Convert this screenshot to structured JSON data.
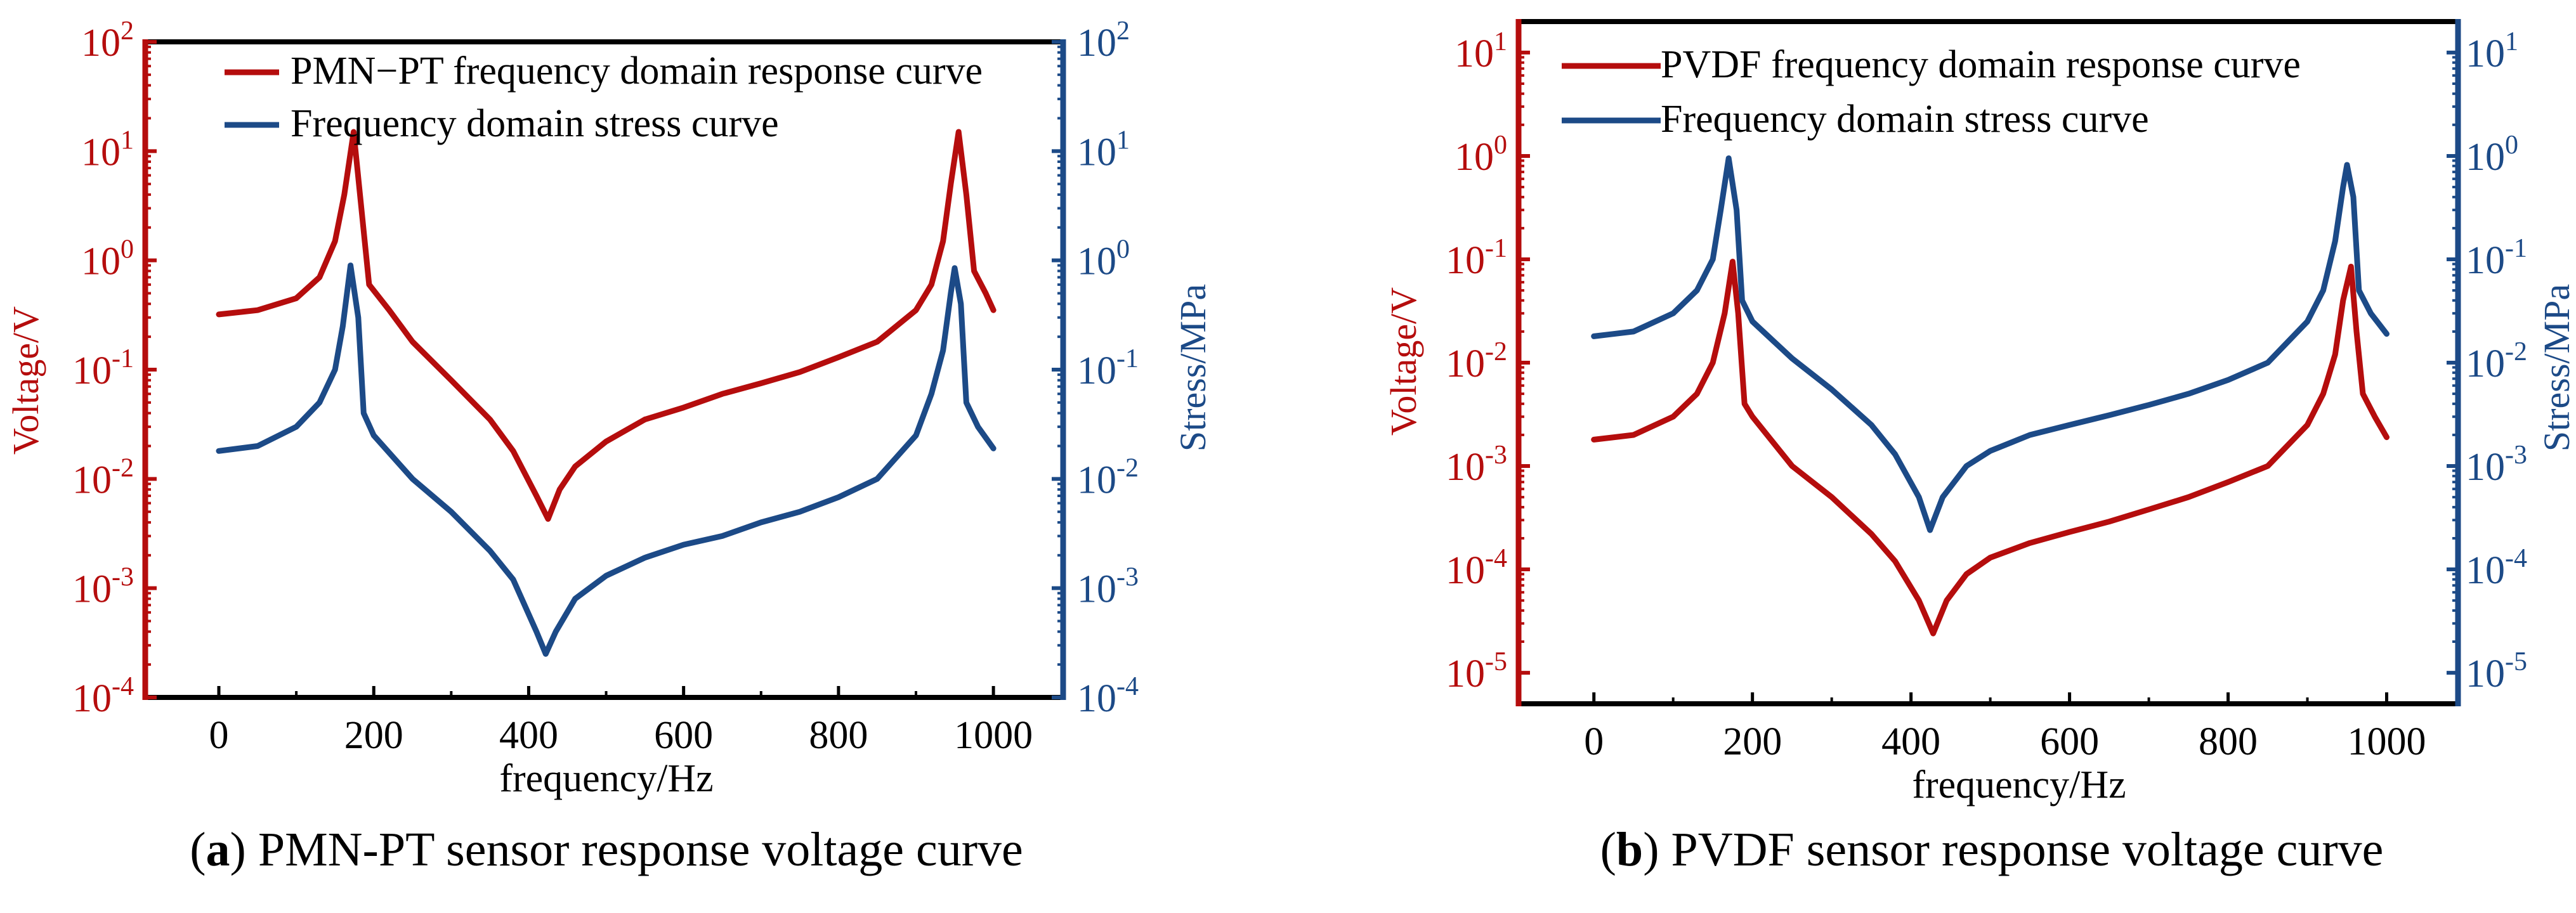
{
  "colors": {
    "voltage": "#b50d0d",
    "stress": "#1c4a87",
    "axis": "#000000"
  },
  "chart_data": [
    {
      "type": "line",
      "caption_letter": "a",
      "caption_text": ") PMN-PT sensor response voltage curve",
      "caption_open": "(",
      "xlabel": "frequency/Hz",
      "ylabel_left": "Voltage/V",
      "ylabel_right": "Stress/MPa",
      "xlim": [
        -95,
        1090
      ],
      "x_ticks": [
        0,
        200,
        400,
        600,
        800,
        1000
      ],
      "yscale": "log",
      "ylim_exp": [
        -4,
        2
      ],
      "y_tick_exponents": [
        -4,
        -3,
        -2,
        -1,
        0,
        1,
        2
      ],
      "legend_position": "top-left",
      "series": [
        {
          "name": "PMN−PT frequency domain response curve",
          "axis": "left",
          "points": [
            [
              0,
              0.32
            ],
            [
              50,
              0.35
            ],
            [
              100,
              0.45
            ],
            [
              130,
              0.7
            ],
            [
              150,
              1.5
            ],
            [
              162,
              4
            ],
            [
              174,
              15
            ],
            [
              184,
              3
            ],
            [
              194,
              0.6
            ],
            [
              220,
              0.35
            ],
            [
              250,
              0.18
            ],
            [
              300,
              0.08
            ],
            [
              350,
              0.035
            ],
            [
              380,
              0.018
            ],
            [
              410,
              0.007
            ],
            [
              425,
              0.0043
            ],
            [
              440,
              0.008
            ],
            [
              460,
              0.013
            ],
            [
              500,
              0.022
            ],
            [
              550,
              0.035
            ],
            [
              600,
              0.045
            ],
            [
              650,
              0.06
            ],
            [
              700,
              0.075
            ],
            [
              750,
              0.095
            ],
            [
              800,
              0.13
            ],
            [
              850,
              0.18
            ],
            [
              900,
              0.35
            ],
            [
              920,
              0.6
            ],
            [
              935,
              1.5
            ],
            [
              945,
              5
            ],
            [
              955,
              15
            ],
            [
              965,
              4
            ],
            [
              975,
              0.8
            ],
            [
              990,
              0.5
            ],
            [
              1000,
              0.35
            ]
          ]
        },
        {
          "name": "Frequency domain stress curve",
          "axis": "right",
          "points": [
            [
              0,
              0.018
            ],
            [
              50,
              0.02
            ],
            [
              100,
              0.03
            ],
            [
              130,
              0.05
            ],
            [
              150,
              0.1
            ],
            [
              160,
              0.25
            ],
            [
              170,
              0.9
            ],
            [
              180,
              0.3
            ],
            [
              187,
              0.04
            ],
            [
              200,
              0.025
            ],
            [
              250,
              0.01
            ],
            [
              300,
              0.005
            ],
            [
              350,
              0.0022
            ],
            [
              380,
              0.0012
            ],
            [
              410,
              0.0004
            ],
            [
              422,
              0.00025
            ],
            [
              435,
              0.0004
            ],
            [
              460,
              0.0008
            ],
            [
              500,
              0.0013
            ],
            [
              550,
              0.0019
            ],
            [
              600,
              0.0025
            ],
            [
              650,
              0.003
            ],
            [
              700,
              0.004
            ],
            [
              750,
              0.005
            ],
            [
              800,
              0.0068
            ],
            [
              850,
              0.01
            ],
            [
              900,
              0.025
            ],
            [
              920,
              0.06
            ],
            [
              935,
              0.15
            ],
            [
              945,
              0.5
            ],
            [
              950,
              0.85
            ],
            [
              958,
              0.4
            ],
            [
              965,
              0.05
            ],
            [
              980,
              0.03
            ],
            [
              1000,
              0.019
            ]
          ]
        }
      ]
    },
    {
      "type": "line",
      "caption_letter": "b",
      "caption_text": ") PVDF sensor response voltage curve",
      "caption_open": "(",
      "xlabel": "frequency/Hz",
      "ylabel_left": "Voltage/V",
      "ylabel_right": "Stress/MPa",
      "xlim": [
        -95,
        1090
      ],
      "x_ticks": [
        0,
        200,
        400,
        600,
        800,
        1000
      ],
      "yscale": "log",
      "ylim_exp": [
        -5.3,
        1.3
      ],
      "y_tick_exponents": [
        -5,
        -4,
        -3,
        -2,
        -1,
        0,
        1
      ],
      "legend_position": "top-left",
      "series": [
        {
          "name": "PVDF frequency domain response curve",
          "axis": "left",
          "points": [
            [
              0,
              0.0018
            ],
            [
              50,
              0.002
            ],
            [
              100,
              0.003
            ],
            [
              130,
              0.005
            ],
            [
              150,
              0.01
            ],
            [
              165,
              0.03
            ],
            [
              175,
              0.095
            ],
            [
              182,
              0.03
            ],
            [
              190,
              0.004
            ],
            [
              200,
              0.003
            ],
            [
              250,
              0.001
            ],
            [
              300,
              0.0005
            ],
            [
              350,
              0.00022
            ],
            [
              380,
              0.00012
            ],
            [
              410,
              5e-05
            ],
            [
              428,
              2.4e-05
            ],
            [
              445,
              5e-05
            ],
            [
              470,
              9e-05
            ],
            [
              500,
              0.00013
            ],
            [
              550,
              0.00018
            ],
            [
              600,
              0.00023
            ],
            [
              650,
              0.00029
            ],
            [
              700,
              0.00038
            ],
            [
              750,
              0.0005
            ],
            [
              800,
              0.0007
            ],
            [
              850,
              0.001
            ],
            [
              900,
              0.0025
            ],
            [
              920,
              0.005
            ],
            [
              935,
              0.012
            ],
            [
              945,
              0.04
            ],
            [
              955,
              0.085
            ],
            [
              962,
              0.02
            ],
            [
              970,
              0.005
            ],
            [
              985,
              0.003
            ],
            [
              1000,
              0.0019
            ]
          ]
        },
        {
          "name": "Frequency domain stress curve",
          "axis": "right",
          "points": [
            [
              0,
              0.018
            ],
            [
              50,
              0.02
            ],
            [
              100,
              0.03
            ],
            [
              130,
              0.05
            ],
            [
              150,
              0.1
            ],
            [
              160,
              0.3
            ],
            [
              170,
              0.95
            ],
            [
              180,
              0.3
            ],
            [
              187,
              0.04
            ],
            [
              200,
              0.025
            ],
            [
              250,
              0.011
            ],
            [
              300,
              0.0055
            ],
            [
              350,
              0.0025
            ],
            [
              380,
              0.0013
            ],
            [
              410,
              0.0005
            ],
            [
              424,
              0.00024
            ],
            [
              440,
              0.0005
            ],
            [
              470,
              0.001
            ],
            [
              500,
              0.0014
            ],
            [
              550,
              0.002
            ],
            [
              600,
              0.0025
            ],
            [
              650,
              0.0031
            ],
            [
              700,
              0.0039
            ],
            [
              750,
              0.005
            ],
            [
              800,
              0.0068
            ],
            [
              850,
              0.01
            ],
            [
              900,
              0.025
            ],
            [
              920,
              0.05
            ],
            [
              935,
              0.15
            ],
            [
              945,
              0.5
            ],
            [
              950,
              0.82
            ],
            [
              958,
              0.4
            ],
            [
              965,
              0.05
            ],
            [
              980,
              0.03
            ],
            [
              1000,
              0.019
            ]
          ]
        }
      ]
    }
  ]
}
